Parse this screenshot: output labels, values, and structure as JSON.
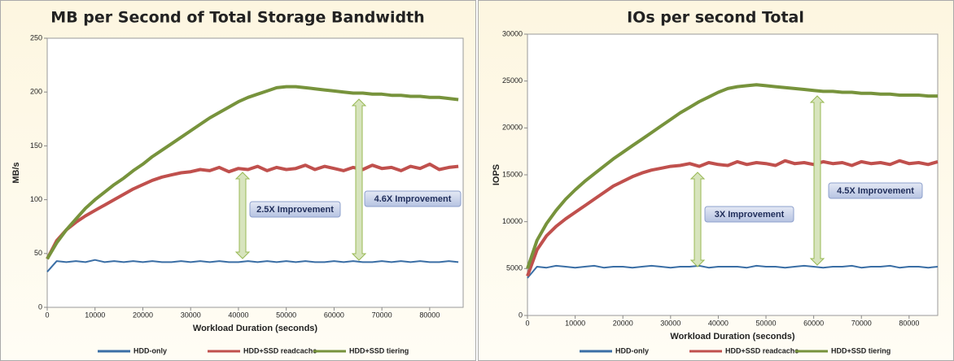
{
  "chart_data": [
    {
      "type": "line",
      "title": "MB per Second of Total Storage Bandwidth",
      "x_label": "Workload Duration (seconds)",
      "y_label": "MB/s",
      "x": [
        0,
        2000,
        4000,
        6000,
        8000,
        10000,
        12000,
        14000,
        16000,
        18000,
        20000,
        22000,
        24000,
        26000,
        28000,
        30000,
        32000,
        34000,
        36000,
        38000,
        40000,
        42000,
        44000,
        46000,
        48000,
        50000,
        52000,
        54000,
        56000,
        58000,
        60000,
        62000,
        64000,
        66000,
        68000,
        70000,
        72000,
        74000,
        76000,
        78000,
        80000,
        82000,
        84000,
        86000
      ],
      "xlim": [
        0,
        87000
      ],
      "xticks": [
        0,
        10000,
        20000,
        30000,
        40000,
        50000,
        60000,
        70000,
        80000
      ],
      "ylim": [
        0,
        250
      ],
      "yticks": [
        0,
        50,
        100,
        150,
        200,
        250
      ],
      "series": [
        {
          "name": "HDD-only",
          "color": "#3a6ea5",
          "values": [
            33,
            43,
            42,
            43,
            42,
            44,
            42,
            43,
            42,
            43,
            42,
            43,
            42,
            42,
            43,
            42,
            43,
            42,
            43,
            42,
            42,
            43,
            42,
            43,
            42,
            43,
            42,
            43,
            42,
            42,
            43,
            42,
            43,
            42,
            42,
            43,
            42,
            43,
            42,
            43,
            42,
            42,
            43,
            42
          ]
        },
        {
          "name": "HDD+SSD readcache",
          "color": "#c0504d",
          "values": [
            45,
            62,
            72,
            79,
            85,
            90,
            95,
            100,
            105,
            110,
            114,
            118,
            121,
            123,
            125,
            126,
            128,
            127,
            130,
            126,
            129,
            128,
            131,
            127,
            130,
            128,
            129,
            132,
            128,
            131,
            129,
            127,
            130,
            128,
            132,
            129,
            130,
            127,
            131,
            129,
            133,
            128,
            130,
            131
          ]
        },
        {
          "name": "HDD+SSD tiering",
          "color": "#77933c",
          "values": [
            45,
            60,
            72,
            82,
            92,
            100,
            107,
            114,
            120,
            127,
            133,
            140,
            146,
            152,
            158,
            164,
            170,
            176,
            181,
            186,
            191,
            195,
            198,
            201,
            204,
            205,
            205,
            204,
            203,
            202,
            201,
            200,
            199,
            199,
            198,
            198,
            197,
            197,
            196,
            196,
            195,
            195,
            194,
            193
          ]
        }
      ],
      "annotations": [
        "2.5X Improvement",
        "4.6X Improvement"
      ]
    },
    {
      "type": "line",
      "title": "IOs per second Total",
      "x_label": "Workload Duration (seconds)",
      "y_label": "IOPS",
      "x": [
        0,
        2000,
        4000,
        6000,
        8000,
        10000,
        12000,
        14000,
        16000,
        18000,
        20000,
        22000,
        24000,
        26000,
        28000,
        30000,
        32000,
        34000,
        36000,
        38000,
        40000,
        42000,
        44000,
        46000,
        48000,
        50000,
        52000,
        54000,
        56000,
        58000,
        60000,
        62000,
        64000,
        66000,
        68000,
        70000,
        72000,
        74000,
        76000,
        78000,
        80000,
        82000,
        84000,
        86000
      ],
      "xlim": [
        0,
        86000
      ],
      "xticks": [
        0,
        10000,
        20000,
        30000,
        40000,
        50000,
        60000,
        70000,
        80000
      ],
      "ylim": [
        0,
        30000
      ],
      "yticks": [
        0,
        5000,
        10000,
        15000,
        20000,
        25000,
        30000
      ],
      "series": [
        {
          "name": "HDD-only",
          "color": "#3a6ea5",
          "values": [
            4000,
            5200,
            5100,
            5300,
            5200,
            5100,
            5200,
            5300,
            5100,
            5200,
            5200,
            5100,
            5200,
            5300,
            5200,
            5100,
            5200,
            5200,
            5300,
            5100,
            5200,
            5200,
            5200,
            5100,
            5300,
            5200,
            5200,
            5100,
            5200,
            5300,
            5200,
            5100,
            5200,
            5200,
            5300,
            5100,
            5200,
            5200,
            5300,
            5100,
            5200,
            5200,
            5100,
            5200
          ]
        },
        {
          "name": "HDD+SSD readcache",
          "color": "#c0504d",
          "values": [
            4200,
            7000,
            8500,
            9500,
            10300,
            11000,
            11700,
            12400,
            13100,
            13800,
            14300,
            14800,
            15200,
            15500,
            15700,
            15900,
            16000,
            16200,
            15900,
            16300,
            16100,
            16000,
            16400,
            16100,
            16300,
            16200,
            16000,
            16500,
            16200,
            16300,
            16100,
            16400,
            16200,
            16300,
            16000,
            16400,
            16200,
            16300,
            16100,
            16500,
            16200,
            16300,
            16100,
            16400
          ]
        },
        {
          "name": "HDD+SSD tiering",
          "color": "#77933c",
          "values": [
            5000,
            8000,
            9800,
            11200,
            12400,
            13400,
            14300,
            15100,
            15900,
            16700,
            17400,
            18100,
            18800,
            19500,
            20200,
            20900,
            21600,
            22200,
            22800,
            23300,
            23800,
            24200,
            24400,
            24500,
            24600,
            24500,
            24400,
            24300,
            24200,
            24100,
            24000,
            23900,
            23900,
            23800,
            23800,
            23700,
            23700,
            23600,
            23600,
            23500,
            23500,
            23500,
            23400,
            23400
          ]
        }
      ],
      "annotations": [
        "3X Improvement",
        "4.5X Improvement"
      ]
    }
  ]
}
